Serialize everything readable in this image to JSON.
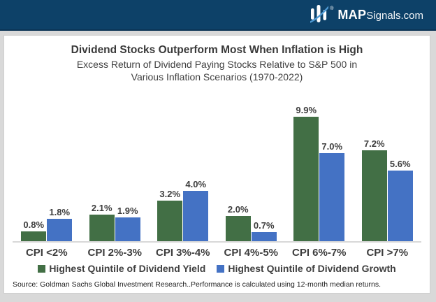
{
  "header": {
    "brand": {
      "name_bold": "MAP",
      "name_rest": "Signals.com",
      "registered": "®"
    }
  },
  "title": "Dividend Stocks Outperform Most When Inflation is High",
  "subtitle_line1": "Excess Return of Dividend Paying Stocks Relative to S&P 500 in",
  "subtitle_line2": "Various Inflation Scenarios (1970-2022)",
  "chart_data": {
    "type": "bar",
    "title": "Dividend Stocks Outperform Most When Inflation is High",
    "subtitle": "Excess Return of Dividend Paying Stocks Relative to S&P 500 in Various Inflation Scenarios (1970-2022)",
    "categories": [
      "CPI <2%",
      "CPI 2%-3%",
      "CPI 3%-4%",
      "CPI 4%-5%",
      "CPI 6%-7%",
      "CPI >7%"
    ],
    "series": [
      {
        "name": "Highest Quintile of Dividend Yield",
        "color": "#426f45",
        "values": [
          0.8,
          2.1,
          3.2,
          2.0,
          9.9,
          7.2
        ],
        "labels": [
          "0.8%",
          "2.1%",
          "3.2%",
          "2.0%",
          "9.9%",
          "7.2%"
        ]
      },
      {
        "name": "Highest Quintile of Dividend Growth",
        "color": "#4472c4",
        "values": [
          1.8,
          1.9,
          4.0,
          0.7,
          7.0,
          5.6
        ],
        "labels": [
          "1.8%",
          "1.9%",
          "4.0%",
          "0.7%",
          "7.0%",
          "5.6%"
        ]
      }
    ],
    "ylim": [
      0,
      10.5
    ],
    "grid": false,
    "legend_position": "bottom",
    "value_labels": "above-bars"
  },
  "source": "Source: Goldman Sachs Global Investment Research..Performance is calculated using 12-month median returns.",
  "colors": {
    "header_bg": "#0d4168",
    "page_bg": "#d9d9d9",
    "panel_bg": "#ffffff",
    "green": "#426f45",
    "blue": "#4472c4",
    "text": "#3d3d3d"
  }
}
